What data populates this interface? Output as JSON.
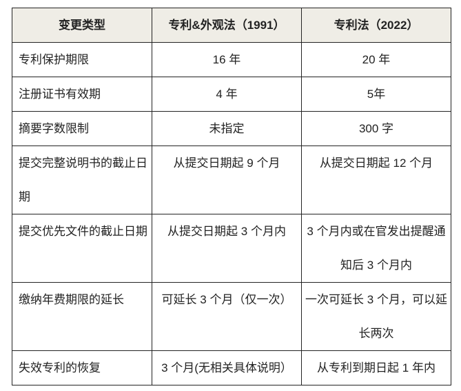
{
  "table": {
    "headers": [
      "变更类型",
      "专利&外观法（1991）",
      "专利法（2022）"
    ],
    "header_bg": "#efede6",
    "rows": [
      [
        "专利保护期限",
        "16 年",
        "20 年"
      ],
      [
        "注册证书有效期",
        "4 年",
        "5年"
      ],
      [
        "摘要字数限制",
        "未指定",
        "300 字"
      ],
      [
        "提交完整说明书的截止日期",
        "从提交日期起 9 个月",
        "从提交日期起 12 个月"
      ],
      [
        "提交优先文件的截止日期",
        "从提交日期起 3 个月内",
        "3 个月内或在官发出提醒通知后 3 个月内"
      ],
      [
        "缴纳年费期限的延长",
        "可延长 3 个月（仅一次）",
        "一次可延长 3 个月，可以延长两次"
      ],
      [
        "失效专利的恢复",
        "3 个月(无相关具体说明）",
        "从专利到期日起 1 年内"
      ]
    ]
  }
}
